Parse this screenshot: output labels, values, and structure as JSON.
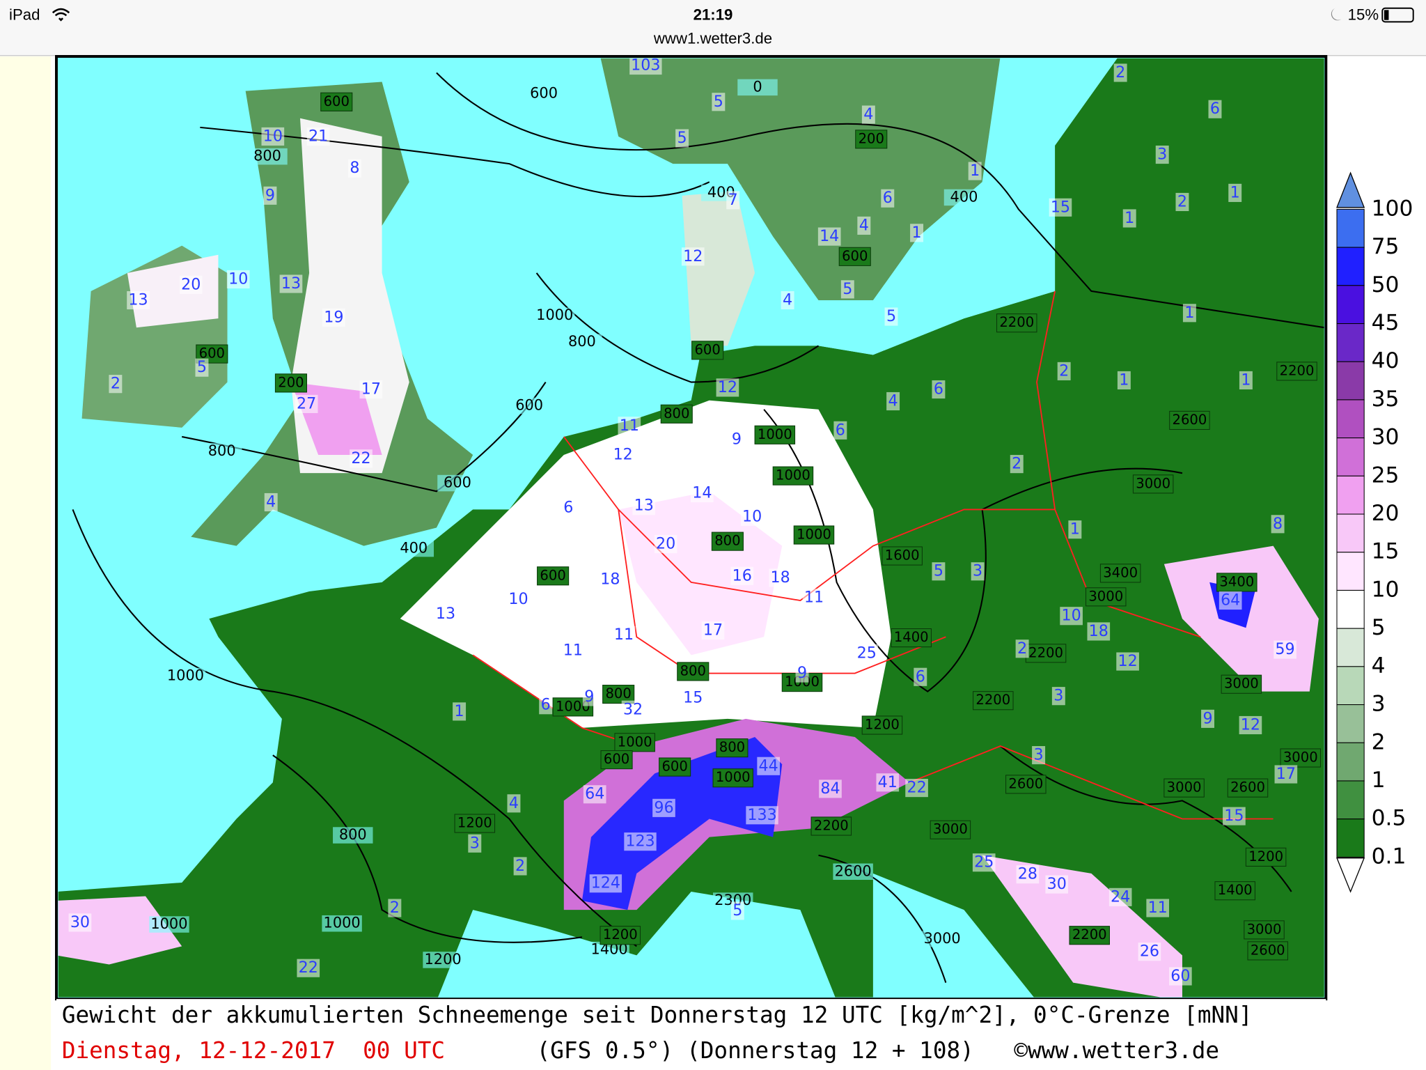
{
  "status_bar": {
    "device": "iPad",
    "time": "21:19",
    "battery": "15%"
  },
  "address_bar": {
    "url": "www1.wetter3.de"
  },
  "map": {
    "snow_labels": [
      103,
      5,
      5,
      4,
      10,
      21,
      8,
      9,
      7,
      6,
      4,
      14,
      12,
      1,
      15,
      1,
      2,
      1,
      3,
      6,
      2,
      20,
      10,
      13,
      13,
      19,
      4,
      5,
      5,
      1,
      2,
      5,
      17,
      27,
      22,
      12,
      11,
      12,
      9,
      13,
      14,
      10,
      20,
      6,
      16,
      18,
      18,
      10,
      13,
      11,
      11,
      17,
      11,
      25,
      9,
      15,
      6,
      9,
      32,
      1,
      4,
      4,
      6,
      6,
      2,
      1,
      1,
      2,
      1,
      8,
      5,
      3,
      10,
      18,
      12,
      2,
      3,
      3,
      9,
      12,
      17,
      15,
      64,
      59,
      6,
      44,
      84,
      41,
      22,
      133,
      96,
      64,
      123,
      124,
      4,
      3,
      2,
      2,
      5,
      25,
      28,
      30,
      24,
      11,
      26,
      60,
      22,
      30,
      1
    ],
    "freezing_level_labels": [
      600,
      200,
      600,
      600,
      800,
      1000,
      1000,
      800,
      1000,
      600,
      1600,
      1400,
      800,
      1000,
      800,
      1000,
      1000,
      600,
      600,
      800,
      1000,
      1200,
      2200,
      1200,
      3000,
      2600,
      2200,
      2200,
      3000,
      3400,
      3400,
      3000,
      2600,
      2200,
      2200,
      3000,
      3000,
      3000,
      2600,
      1200,
      1400,
      2200,
      3000,
      2600,
      1200,
      600,
      200
    ],
    "contour_labels": [
      600,
      800,
      400,
      400,
      1000,
      800,
      600,
      800,
      600,
      400,
      1000,
      800,
      1000,
      1200,
      1400,
      2600,
      2300,
      3000,
      0,
      1000
    ]
  },
  "legend": {
    "labels": [
      100,
      75,
      50,
      45,
      40,
      35,
      30,
      25,
      20,
      15,
      10,
      5,
      4,
      3,
      2,
      1,
      0.5,
      0.1
    ],
    "colors": [
      "#3c6ef0",
      "#2020ff",
      "#4a10e0",
      "#6a28c8",
      "#8a3aa8",
      "#b050c0",
      "#d070d8",
      "#f0a0f0",
      "#f8c8f8",
      "#ffe6ff",
      "#ffffff",
      "#d8e8d8",
      "#b8d8b8",
      "#98c098",
      "#70a870",
      "#409040",
      "#1a7a1a"
    ]
  },
  "caption": {
    "line1": "Gewicht der akkumulierten Schneemenge seit Donnerstag 12 UTC [kg/m^2], 0°C-Grenze [mNN]",
    "date": "Dienstag, 12-12-2017  00 UTC",
    "model": "(GFS 0.5°)",
    "run": "(Donnerstag 12 + 108)",
    "credit": "©www.wetter3.de"
  }
}
